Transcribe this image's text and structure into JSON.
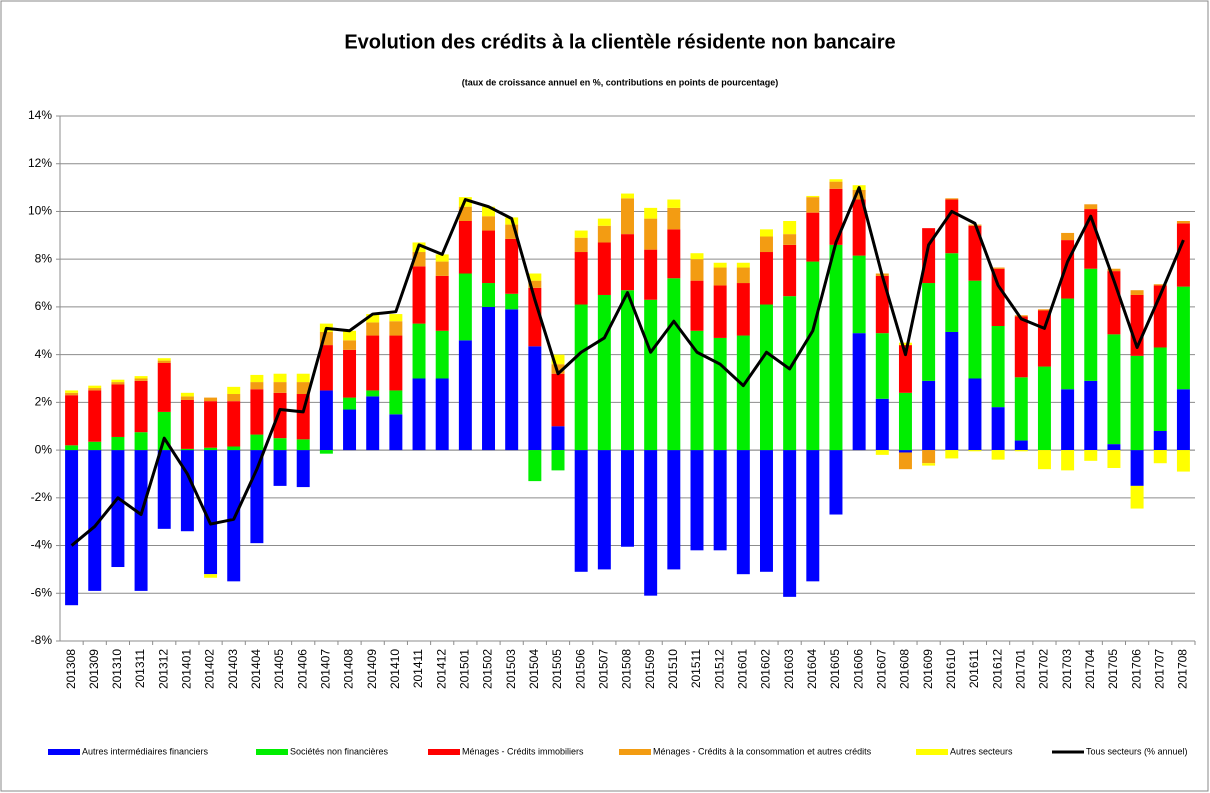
{
  "chart_data": {
    "type": "bar",
    "stacked": true,
    "title": "Evolution des crédits à la clientèle résidente non bancaire",
    "subtitle": "(taux de croissance annuel en %, contributions en points de pourcentage)",
    "categories": [
      "201308",
      "201309",
      "201310",
      "201311",
      "201312",
      "201401",
      "201402",
      "201403",
      "201404",
      "201405",
      "201406",
      "201407",
      "201408",
      "201409",
      "201410",
      "201411",
      "201412",
      "201501",
      "201502",
      "201503",
      "201504",
      "201505",
      "201506",
      "201507",
      "201508",
      "201509",
      "201510",
      "201511",
      "201512",
      "201601",
      "201602",
      "201603",
      "201604",
      "201605",
      "201606",
      "201607",
      "201608",
      "201609",
      "201610",
      "201611",
      "201612",
      "201701",
      "201702",
      "201703",
      "201704",
      "201705",
      "201706",
      "201707",
      "201708"
    ],
    "ylim": [
      -8,
      14
    ],
    "yticks": [
      {
        "value": -8,
        "label": "-8%"
      },
      {
        "value": -6,
        "label": "-6%"
      },
      {
        "value": -4,
        "label": "-4%"
      },
      {
        "value": -2,
        "label": "-2%"
      },
      {
        "value": 0,
        "label": "0%"
      },
      {
        "value": 2,
        "label": "2%"
      },
      {
        "value": 4,
        "label": "4%"
      },
      {
        "value": 6,
        "label": "6%"
      },
      {
        "value": 8,
        "label": "8%"
      },
      {
        "value": 10,
        "label": "10%"
      },
      {
        "value": 12,
        "label": "12%"
      },
      {
        "value": 14,
        "label": "14%"
      }
    ],
    "grid": true,
    "legend": "bottom",
    "series": [
      {
        "name": "Autres intermédiaires financiers",
        "color": "#0000ff",
        "values": [
          -6.5,
          -5.9,
          -4.9,
          -5.9,
          -3.3,
          -3.4,
          -5.2,
          -5.5,
          -3.9,
          -1.5,
          -1.55,
          2.5,
          1.7,
          2.25,
          1.5,
          3.0,
          3.0,
          4.6,
          6.0,
          5.9,
          4.35,
          1.0,
          -5.1,
          -5.0,
          -4.05,
          -6.1,
          -5.0,
          -4.2,
          -4.2,
          -5.2,
          -5.1,
          -6.15,
          -5.5,
          -2.7,
          4.9,
          2.15,
          -0.1,
          2.9,
          4.95,
          3.0,
          1.8,
          0.4,
          0,
          2.55,
          2.9,
          0.25,
          -1.5,
          0.8,
          2.55
        ]
      },
      {
        "name": "Sociétés non financières",
        "color": "#00ee00",
        "values": [
          0.2,
          0.35,
          0.55,
          0.75,
          1.6,
          0.05,
          0.1,
          0.15,
          0.65,
          0.5,
          0.45,
          -0.15,
          0.5,
          0.25,
          1.0,
          2.3,
          2.0,
          2.8,
          1.0,
          0.65,
          -1.3,
          -0.85,
          6.1,
          6.5,
          6.7,
          6.3,
          7.2,
          5.0,
          4.7,
          4.8,
          6.1,
          6.45,
          7.9,
          8.6,
          3.25,
          2.75,
          2.4,
          4.1,
          3.3,
          4.1,
          3.4,
          2.65,
          3.5,
          3.8,
          4.7,
          4.6,
          3.95,
          3.5,
          4.3
        ]
      },
      {
        "name": "Ménages - Crédits immobiliers",
        "color": "#ff0000",
        "values": [
          2.1,
          2.15,
          2.2,
          2.15,
          2.05,
          2.05,
          1.95,
          1.9,
          1.9,
          1.9,
          1.9,
          1.9,
          2.0,
          2.3,
          2.3,
          2.4,
          2.3,
          2.2,
          2.2,
          2.3,
          2.45,
          2.2,
          2.2,
          2.2,
          2.35,
          2.1,
          2.05,
          2.1,
          2.2,
          2.2,
          2.2,
          2.15,
          2.05,
          2.35,
          2.35,
          2.4,
          2.0,
          2.3,
          2.25,
          2.3,
          2.4,
          2.55,
          2.35,
          2.45,
          2.5,
          2.65,
          2.55,
          2.6,
          2.65
        ]
      },
      {
        "name": "Ménages - Crédits à la consommation et autres crédits",
        "color": "#f39c12",
        "values": [
          0.1,
          0.1,
          0.1,
          0.1,
          0.1,
          0.15,
          0.15,
          0.3,
          0.3,
          0.45,
          0.5,
          0.55,
          0.4,
          0.55,
          0.6,
          0.6,
          0.6,
          0.6,
          0.6,
          0.6,
          0.3,
          0.4,
          0.6,
          0.7,
          1.5,
          1.3,
          0.9,
          0.9,
          0.75,
          0.65,
          0.65,
          0.45,
          0.65,
          0.3,
          0.4,
          0.1,
          -0.7,
          -0.55,
          0.05,
          0.05,
          0.05,
          0.05,
          0.05,
          0.3,
          0.2,
          0.1,
          0.2,
          0.05,
          0.1
        ]
      },
      {
        "name": "Autres secteurs",
        "color": "#ffff00",
        "values": [
          0.1,
          0.1,
          0.1,
          0.1,
          0.1,
          0.15,
          -0.15,
          0.3,
          0.3,
          0.35,
          0.35,
          0.35,
          0.4,
          0.35,
          0.3,
          0.4,
          0.3,
          0.4,
          0.4,
          0.3,
          0.3,
          0.4,
          0.3,
          0.3,
          0.2,
          0.45,
          0.35,
          0.25,
          0.2,
          0.2,
          0.3,
          0.55,
          0.05,
          0.1,
          0.2,
          -0.2,
          0.1,
          -0.1,
          -0.35,
          -0.05,
          -0.4,
          -0.05,
          -0.8,
          -0.85,
          -0.45,
          -0.75,
          -0.95,
          -0.55,
          -0.9
        ]
      },
      {
        "name": "Tous secteurs (% annuel)",
        "color": "#000000",
        "kind": "line",
        "values": [
          -4.0,
          -3.2,
          -2.0,
          -2.7,
          0.5,
          -1.0,
          -3.1,
          -2.9,
          -0.8,
          1.7,
          1.6,
          5.1,
          5.0,
          5.7,
          5.8,
          8.6,
          8.2,
          10.5,
          10.2,
          9.7,
          6.3,
          3.2,
          4.1,
          4.7,
          6.6,
          4.1,
          5.4,
          4.1,
          3.6,
          2.7,
          4.1,
          3.4,
          5.0,
          8.7,
          11.0,
          7.3,
          4.0,
          8.6,
          10.0,
          9.5,
          6.9,
          5.5,
          5.1,
          7.9,
          9.8,
          7.1,
          4.3,
          6.5,
          8.8
        ]
      }
    ]
  }
}
